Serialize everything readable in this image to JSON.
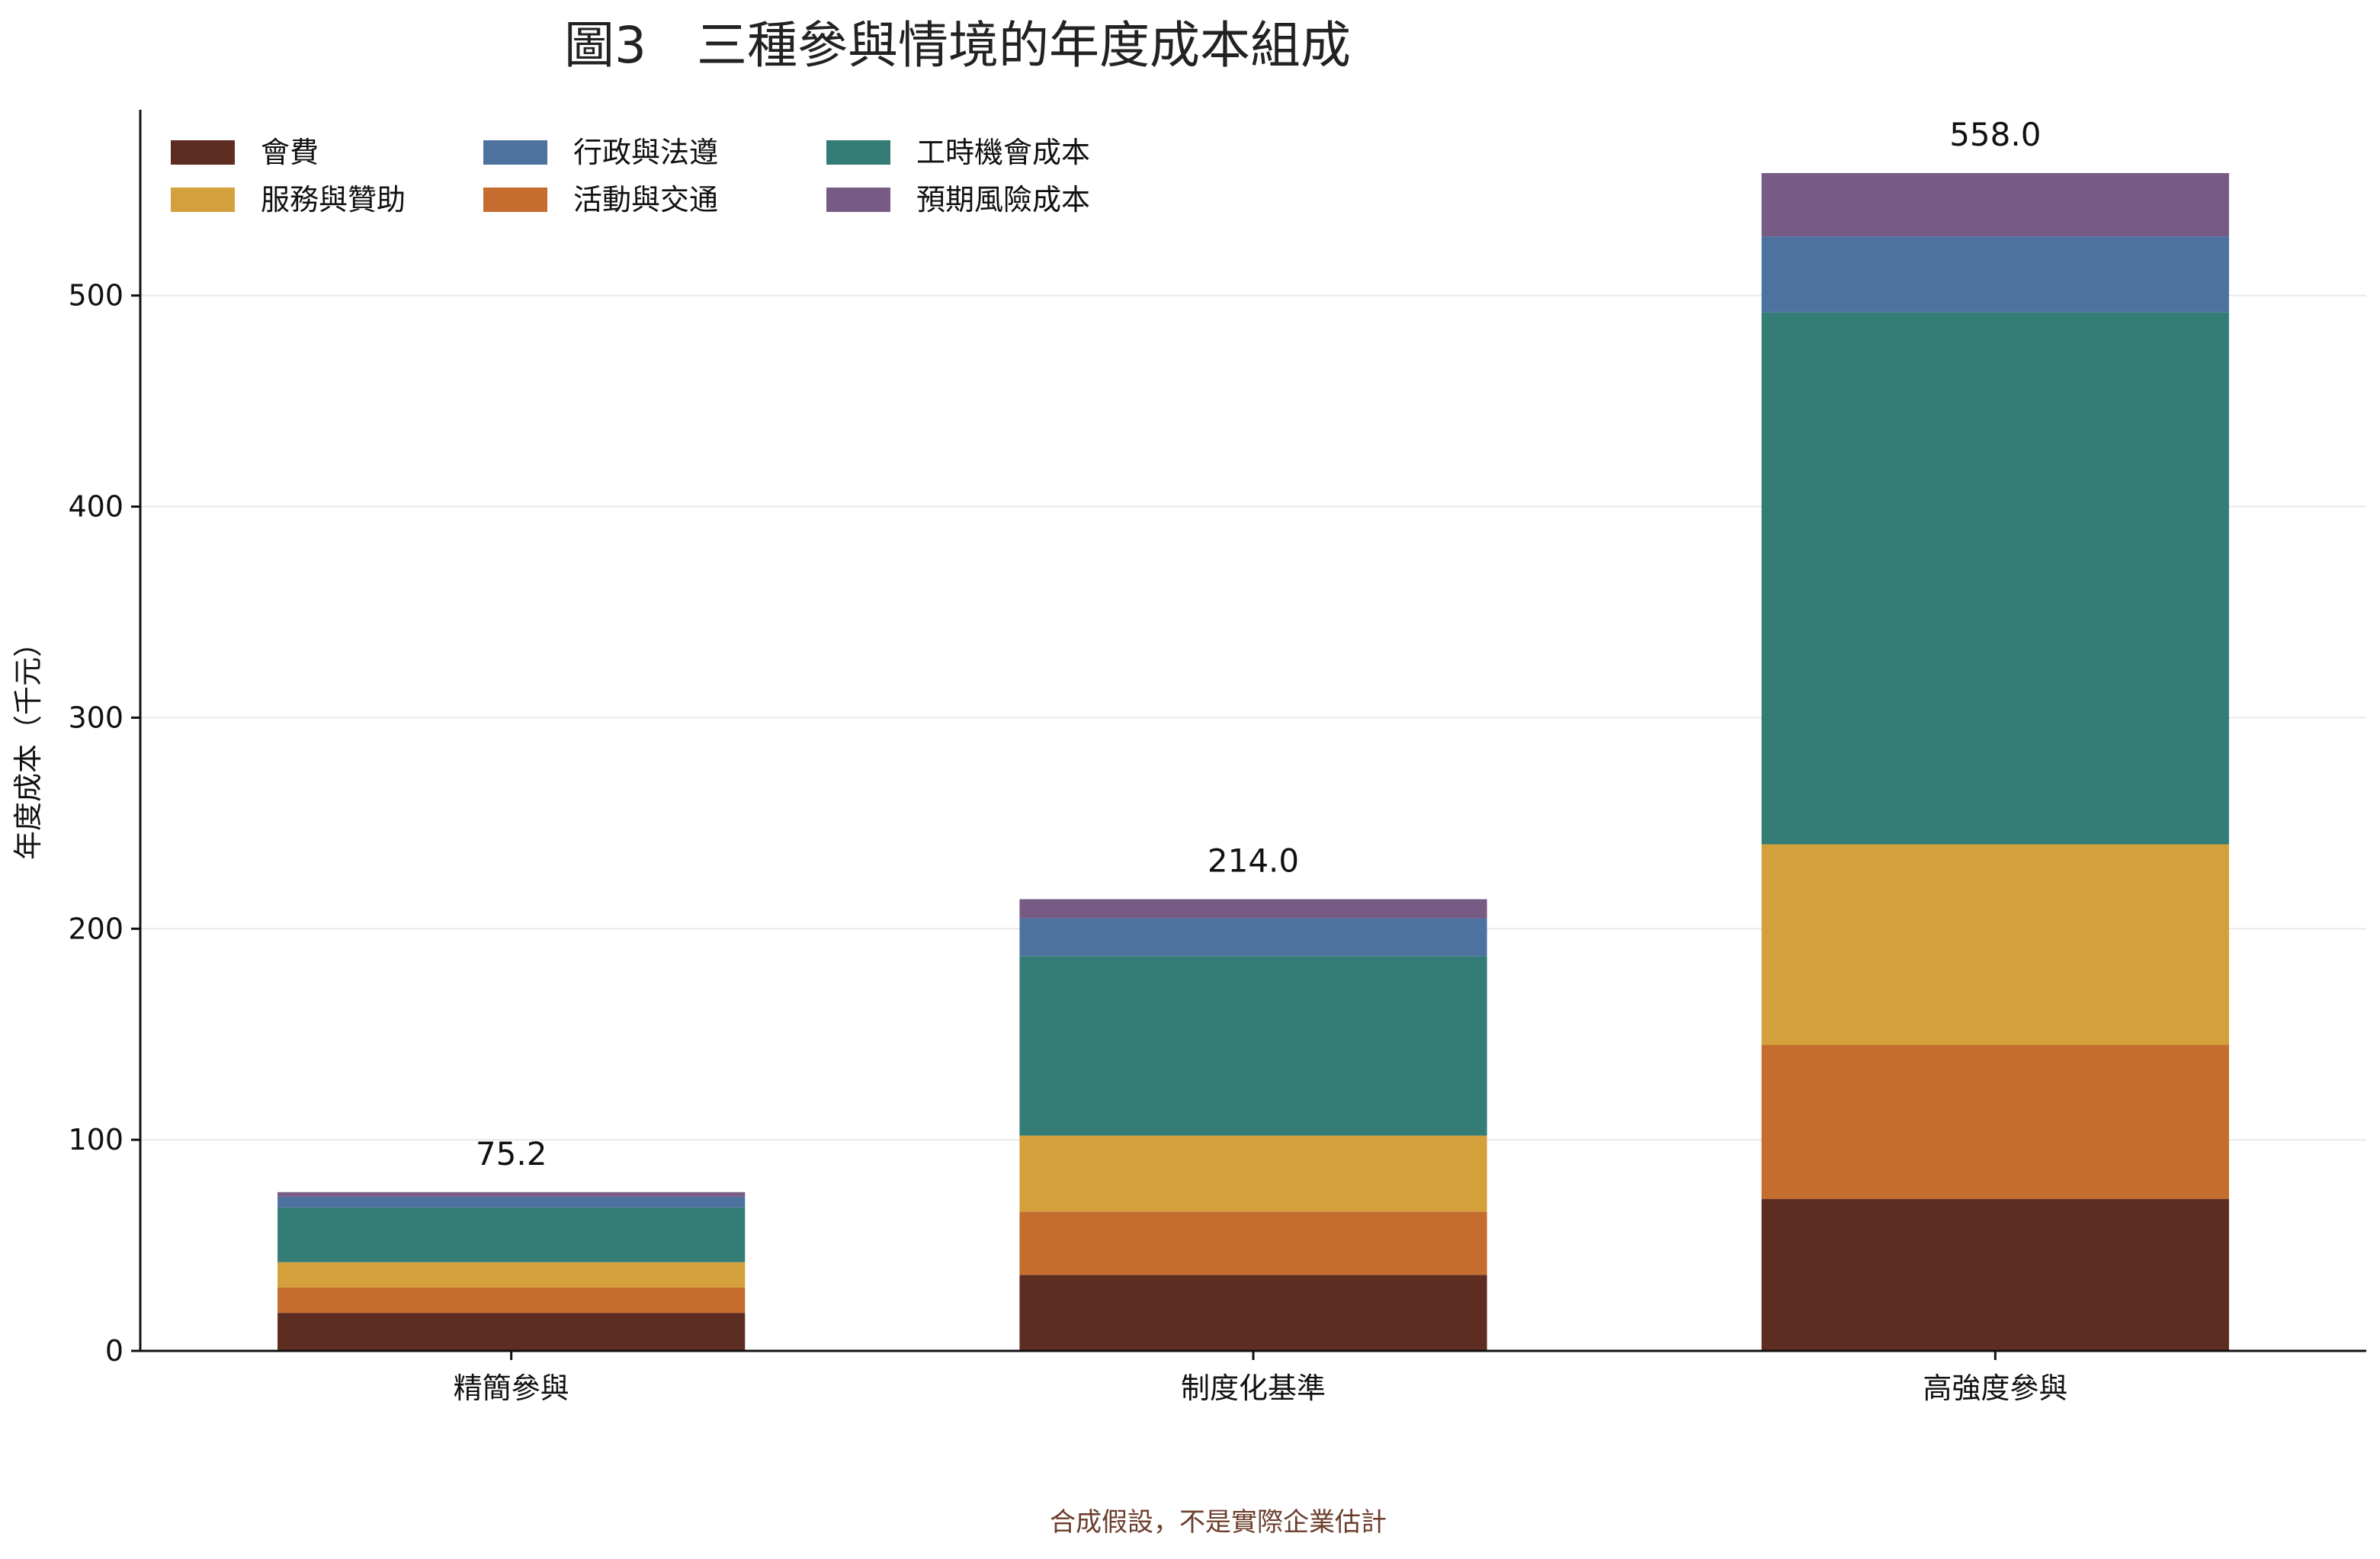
{
  "chart_data": {
    "type": "bar",
    "stacked": true,
    "title": "圖3　三種參與情境的年度成本組成",
    "ylabel": "年度成本（千元）",
    "xlabel": "",
    "ylim": [
      0,
      588
    ],
    "yticks": [
      0,
      100,
      200,
      300,
      400,
      500
    ],
    "grid": true,
    "legend_position": "top-left",
    "categories": [
      "精簡參與",
      "制度化基準",
      "高強度參與"
    ],
    "totals": [
      "75.2",
      "214.0",
      "558.0"
    ],
    "series": [
      {
        "name": "會費",
        "color": "#5c2d20",
        "values": [
          18,
          36,
          72
        ]
      },
      {
        "name": "活動與交通",
        "color": "#c46d2e",
        "values": [
          12,
          30,
          73
        ]
      },
      {
        "name": "服務與贊助",
        "color": "#d4a03c",
        "values": [
          12,
          36,
          95
        ]
      },
      {
        "name": "工時機會成本",
        "color": "#347d77",
        "values": [
          26,
          85,
          252
        ]
      },
      {
        "name": "行政與法遵",
        "color": "#4e72a0",
        "values": [
          5,
          18,
          36
        ]
      },
      {
        "name": "預期風險成本",
        "color": "#775b85",
        "values": [
          2.2,
          9,
          30
        ]
      }
    ],
    "legend_order": [
      "會費",
      "服務與贊助",
      "行政與法遵",
      "活動與交通",
      "工時機會成本",
      "預期風險成本"
    ],
    "footnote": "合成假設，不是實際企業估計"
  }
}
